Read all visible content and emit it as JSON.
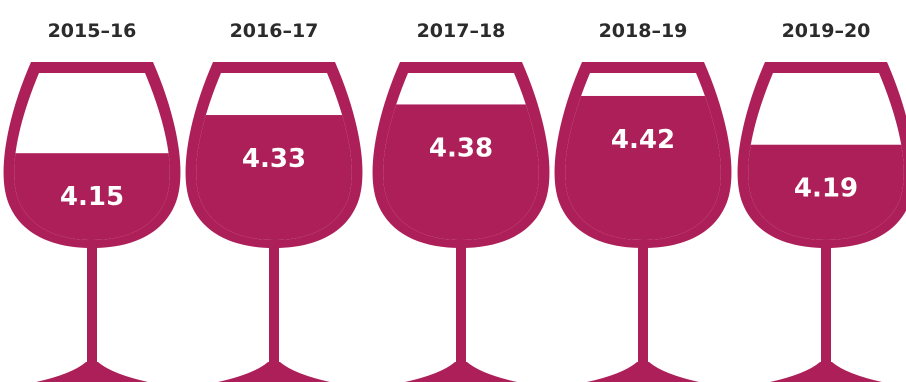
{
  "colors": {
    "wine": "#ad1f58",
    "label_text": "#2b2b2b",
    "value_text": "#ffffff",
    "background": "#ffffff"
  },
  "icons": [
    "wine-glass-icon"
  ],
  "chart_data": {
    "type": "bar",
    "categories": [
      "2015–16",
      "2016–17",
      "2017–18",
      "2018–19",
      "2019–20"
    ],
    "values": [
      4.15,
      4.33,
      4.38,
      4.42,
      4.19
    ],
    "value_labels": [
      "4.15",
      "4.33",
      "4.38",
      "4.42",
      "4.19"
    ],
    "title": "",
    "xlabel": "",
    "ylabel": "",
    "grid": false,
    "legend": "none"
  }
}
